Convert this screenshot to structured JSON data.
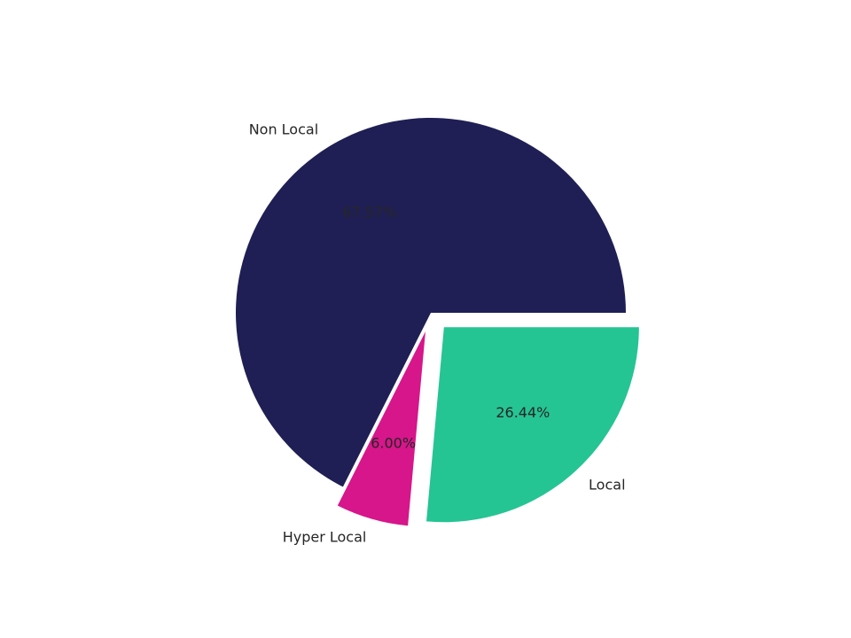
{
  "chart_data": {
    "type": "pie",
    "categories": [
      "Non Local",
      "Hyper Local",
      "Local"
    ],
    "values": [
      67.57,
      6.0,
      26.44
    ],
    "value_labels": [
      "67.57%",
      "6.00%",
      "26.44%"
    ],
    "colors": [
      "#1f1f55",
      "#d6168a",
      "#25c493"
    ],
    "explode": [
      0,
      0.1,
      0.1
    ],
    "start_angle": 0
  }
}
